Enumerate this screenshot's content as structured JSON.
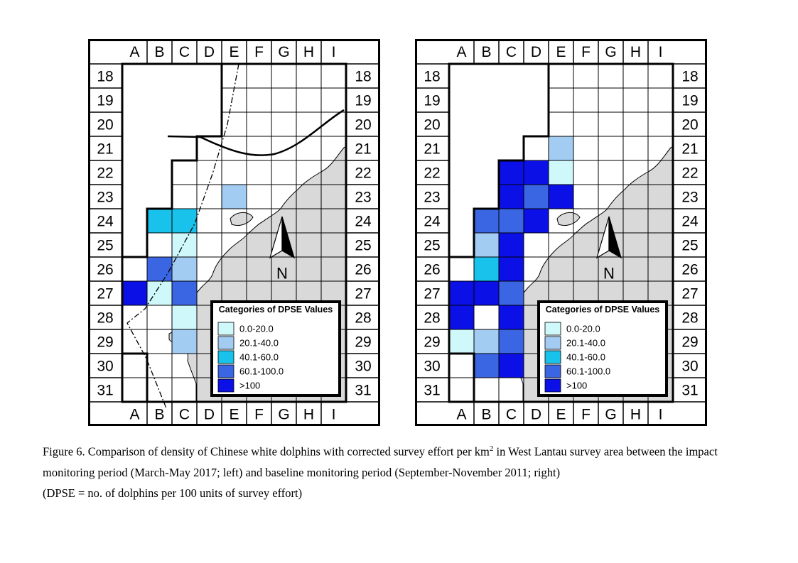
{
  "maps": [
    {
      "id": "impact",
      "compass_label": "N",
      "legend": {
        "title": "Categories of DPSE Values",
        "items": [
          {
            "label": "0.0-20.0",
            "color": "#cff8fb"
          },
          {
            "label": "20.1-40.0",
            "color": "#a3ccf3"
          },
          {
            "label": "40.1-60.0",
            "color": "#19c2ea"
          },
          {
            "label": "60.1-100.0",
            "color": "#3b66e3"
          },
          {
            "label": ">100",
            "color": "#0b10e6"
          }
        ]
      },
      "cells": [
        {
          "col": "E",
          "row": 23,
          "category": 2
        },
        {
          "col": "B",
          "row": 24,
          "category": 3
        },
        {
          "col": "C",
          "row": 24,
          "category": 3
        },
        {
          "col": "C",
          "row": 25,
          "category": 1
        },
        {
          "col": "B",
          "row": 26,
          "category": 4
        },
        {
          "col": "C",
          "row": 26,
          "category": 2
        },
        {
          "col": "A",
          "row": 27,
          "category": 5
        },
        {
          "col": "B",
          "row": 27,
          "category": 1
        },
        {
          "col": "C",
          "row": 27,
          "category": 4
        },
        {
          "col": "C",
          "row": 28,
          "category": 1
        },
        {
          "col": "C",
          "row": 29,
          "category": 2
        }
      ]
    },
    {
      "id": "baseline",
      "compass_label": "N",
      "legend": {
        "title": "Categories of DPSE Values",
        "items": [
          {
            "label": "0.0-20.0",
            "color": "#cff8fb"
          },
          {
            "label": "20.1-40.0",
            "color": "#a3ccf3"
          },
          {
            "label": "40.1-60.0",
            "color": "#19c2ea"
          },
          {
            "label": "60.1-100.0",
            "color": "#3b66e3"
          },
          {
            "label": ">100",
            "color": "#0b10e6"
          }
        ]
      },
      "cells": [
        {
          "col": "E",
          "row": 21,
          "category": 2
        },
        {
          "col": "C",
          "row": 22,
          "category": 5
        },
        {
          "col": "D",
          "row": 22,
          "category": 5
        },
        {
          "col": "E",
          "row": 22,
          "category": 1
        },
        {
          "col": "C",
          "row": 23,
          "category": 5
        },
        {
          "col": "D",
          "row": 23,
          "category": 4
        },
        {
          "col": "E",
          "row": 23,
          "category": 5
        },
        {
          "col": "B",
          "row": 24,
          "category": 4
        },
        {
          "col": "C",
          "row": 24,
          "category": 4
        },
        {
          "col": "D",
          "row": 24,
          "category": 5
        },
        {
          "col": "B",
          "row": 25,
          "category": 2
        },
        {
          "col": "C",
          "row": 25,
          "category": 5
        },
        {
          "col": "B",
          "row": 26,
          "category": 3
        },
        {
          "col": "C",
          "row": 26,
          "category": 5
        },
        {
          "col": "A",
          "row": 27,
          "category": 5
        },
        {
          "col": "B",
          "row": 27,
          "category": 5
        },
        {
          "col": "C",
          "row": 27,
          "category": 4
        },
        {
          "col": "A",
          "row": 28,
          "category": 5
        },
        {
          "col": "C",
          "row": 28,
          "category": 5
        },
        {
          "col": "A",
          "row": 29,
          "category": 1
        },
        {
          "col": "B",
          "row": 29,
          "category": 2
        },
        {
          "col": "C",
          "row": 29,
          "category": 4
        },
        {
          "col": "B",
          "row": 30,
          "category": 4
        },
        {
          "col": "C",
          "row": 30,
          "category": 5
        }
      ]
    }
  ],
  "grid": {
    "columns": [
      "A",
      "B",
      "C",
      "D",
      "E",
      "F",
      "G",
      "H",
      "I"
    ],
    "rows": [
      "18",
      "19",
      "20",
      "21",
      "22",
      "23",
      "24",
      "25",
      "26",
      "27",
      "28",
      "29",
      "30",
      "31"
    ]
  },
  "caption": {
    "line1_pre": "Figure 6.  Comparison of density of Chinese white dolphins with corrected survey effort per km",
    "line1_sup": "2",
    "line1_post": " in West Lantau survey area between the impact monitoring period (March-May 2017; left) and baseline monitoring period (September-November 2011; right)",
    "line2": "(DPSE = no. of dolphins per 100 units of survey effort)"
  },
  "colors": {
    "land": "#d9d9d9",
    "grid_line": "#000000"
  }
}
